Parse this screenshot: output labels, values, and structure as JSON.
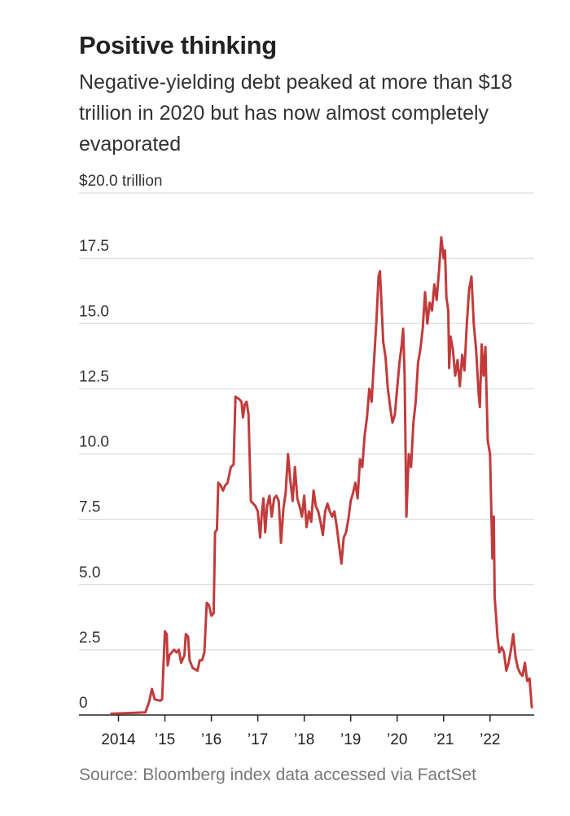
{
  "chart_data": {
    "type": "line",
    "title": "Positive thinking",
    "subtitle": "Negative-yielding debt peaked at more than $18 trillion in 2020 but has now almost completely evaporated",
    "source": "Source: Bloomberg index data accessed via FactSet",
    "ylim": [
      0,
      20
    ],
    "xlim": [
      2013.15,
      2022.95
    ],
    "y_ticks": [
      {
        "value": 20,
        "label": "$20.0 trillion"
      },
      {
        "value": 17.5,
        "label": "17.5"
      },
      {
        "value": 15,
        "label": "15.0"
      },
      {
        "value": 12.5,
        "label": "12.5"
      },
      {
        "value": 10,
        "label": "10.0"
      },
      {
        "value": 7.5,
        "label": "7.5"
      },
      {
        "value": 5,
        "label": "5.0"
      },
      {
        "value": 2.5,
        "label": "2.5"
      },
      {
        "value": 0,
        "label": "0"
      }
    ],
    "x_ticks": [
      {
        "value": 2014,
        "label": "2014"
      },
      {
        "value": 2015,
        "label": "’15"
      },
      {
        "value": 2016,
        "label": "’16"
      },
      {
        "value": 2017,
        "label": "’17"
      },
      {
        "value": 2018,
        "label": "’18"
      },
      {
        "value": 2019,
        "label": "’19"
      },
      {
        "value": 2020,
        "label": "’20"
      },
      {
        "value": 2021,
        "label": "’21"
      },
      {
        "value": 2022,
        "label": "’22"
      }
    ],
    "grid": "horizontal",
    "line_color": "#c23b3b",
    "series": [
      {
        "name": "",
        "points": [
          [
            2013.85,
            0.05
          ],
          [
            2014.3,
            0.08
          ],
          [
            2014.58,
            0.1
          ],
          [
            2014.62,
            0.3
          ],
          [
            2014.66,
            0.5
          ],
          [
            2014.72,
            1.0
          ],
          [
            2014.78,
            0.6
          ],
          [
            2014.9,
            0.55
          ],
          [
            2014.94,
            0.6
          ],
          [
            2015.0,
            3.2
          ],
          [
            2015.04,
            3.1
          ],
          [
            2015.06,
            1.9
          ],
          [
            2015.1,
            2.3
          ],
          [
            2015.2,
            2.5
          ],
          [
            2015.25,
            2.4
          ],
          [
            2015.3,
            2.5
          ],
          [
            2015.35,
            2.0
          ],
          [
            2015.42,
            2.3
          ],
          [
            2015.45,
            3.1
          ],
          [
            2015.5,
            3.0
          ],
          [
            2015.53,
            2.1
          ],
          [
            2015.6,
            1.8
          ],
          [
            2015.7,
            1.7
          ],
          [
            2015.75,
            2.1
          ],
          [
            2015.8,
            2.1
          ],
          [
            2015.85,
            2.4
          ],
          [
            2015.9,
            4.3
          ],
          [
            2015.95,
            4.2
          ],
          [
            2016.0,
            3.8
          ],
          [
            2016.05,
            3.9
          ],
          [
            2016.08,
            7.0
          ],
          [
            2016.12,
            7.1
          ],
          [
            2016.15,
            8.9
          ],
          [
            2016.2,
            8.8
          ],
          [
            2016.25,
            8.6
          ],
          [
            2016.3,
            8.8
          ],
          [
            2016.35,
            8.9
          ],
          [
            2016.42,
            9.5
          ],
          [
            2016.48,
            9.6
          ],
          [
            2016.52,
            12.2
          ],
          [
            2016.6,
            12.1
          ],
          [
            2016.65,
            12.0
          ],
          [
            2016.68,
            11.4
          ],
          [
            2016.72,
            11.9
          ],
          [
            2016.76,
            12.0
          ],
          [
            2016.8,
            11.5
          ],
          [
            2016.85,
            8.2
          ],
          [
            2016.9,
            8.1
          ],
          [
            2016.95,
            8.0
          ],
          [
            2017.0,
            7.8
          ],
          [
            2017.05,
            6.8
          ],
          [
            2017.08,
            7.6
          ],
          [
            2017.12,
            8.3
          ],
          [
            2017.16,
            7.0
          ],
          [
            2017.2,
            8.0
          ],
          [
            2017.25,
            8.4
          ],
          [
            2017.3,
            7.6
          ],
          [
            2017.35,
            8.3
          ],
          [
            2017.4,
            8.4
          ],
          [
            2017.45,
            8.2
          ],
          [
            2017.5,
            6.6
          ],
          [
            2017.55,
            7.9
          ],
          [
            2017.6,
            8.5
          ],
          [
            2017.65,
            10.0
          ],
          [
            2017.7,
            9.0
          ],
          [
            2017.75,
            8.2
          ],
          [
            2017.8,
            9.5
          ],
          [
            2017.85,
            8.3
          ],
          [
            2017.9,
            8.0
          ],
          [
            2017.95,
            7.6
          ],
          [
            2018.0,
            8.4
          ],
          [
            2018.05,
            7.2
          ],
          [
            2018.1,
            7.8
          ],
          [
            2018.15,
            7.4
          ],
          [
            2018.2,
            8.6
          ],
          [
            2018.25,
            8.0
          ],
          [
            2018.3,
            7.8
          ],
          [
            2018.35,
            7.4
          ],
          [
            2018.4,
            6.9
          ],
          [
            2018.45,
            7.8
          ],
          [
            2018.5,
            8.1
          ],
          [
            2018.55,
            7.8
          ],
          [
            2018.6,
            7.6
          ],
          [
            2018.65,
            7.8
          ],
          [
            2018.7,
            7.2
          ],
          [
            2018.75,
            6.5
          ],
          [
            2018.8,
            5.8
          ],
          [
            2018.85,
            6.8
          ],
          [
            2018.9,
            7.0
          ],
          [
            2018.95,
            7.5
          ],
          [
            2019.0,
            8.2
          ],
          [
            2019.05,
            8.5
          ],
          [
            2019.1,
            8.9
          ],
          [
            2019.15,
            8.3
          ],
          [
            2019.2,
            9.8
          ],
          [
            2019.25,
            9.5
          ],
          [
            2019.3,
            10.7
          ],
          [
            2019.35,
            11.4
          ],
          [
            2019.4,
            12.5
          ],
          [
            2019.45,
            12.0
          ],
          [
            2019.5,
            13.5
          ],
          [
            2019.55,
            15.0
          ],
          [
            2019.6,
            16.8
          ],
          [
            2019.63,
            17.0
          ],
          [
            2019.67,
            15.5
          ],
          [
            2019.7,
            14.3
          ],
          [
            2019.75,
            13.7
          ],
          [
            2019.8,
            12.5
          ],
          [
            2019.85,
            11.8
          ],
          [
            2019.9,
            11.2
          ],
          [
            2019.95,
            11.5
          ],
          [
            2020.0,
            12.5
          ],
          [
            2020.05,
            13.5
          ],
          [
            2020.1,
            14.2
          ],
          [
            2020.13,
            14.8
          ],
          [
            2020.16,
            13.0
          ],
          [
            2020.2,
            7.6
          ],
          [
            2020.25,
            10.0
          ],
          [
            2020.3,
            9.5
          ],
          [
            2020.35,
            11.2
          ],
          [
            2020.4,
            12.0
          ],
          [
            2020.45,
            13.5
          ],
          [
            2020.5,
            14.0
          ],
          [
            2020.55,
            14.8
          ],
          [
            2020.6,
            16.2
          ],
          [
            2020.65,
            15.0
          ],
          [
            2020.7,
            15.8
          ],
          [
            2020.75,
            15.5
          ],
          [
            2020.8,
            16.5
          ],
          [
            2020.85,
            15.9
          ],
          [
            2020.9,
            17.0
          ],
          [
            2020.95,
            18.3
          ],
          [
            2021.0,
            17.5
          ],
          [
            2021.03,
            17.8
          ],
          [
            2021.06,
            16.0
          ],
          [
            2021.1,
            15.5
          ],
          [
            2021.12,
            13.3
          ],
          [
            2021.15,
            14.5
          ],
          [
            2021.2,
            14.0
          ],
          [
            2021.25,
            13.0
          ],
          [
            2021.3,
            13.6
          ],
          [
            2021.35,
            12.6
          ],
          [
            2021.4,
            13.8
          ],
          [
            2021.45,
            13.2
          ],
          [
            2021.5,
            15.0
          ],
          [
            2021.55,
            16.3
          ],
          [
            2021.6,
            16.8
          ],
          [
            2021.65,
            15.0
          ],
          [
            2021.7,
            14.0
          ],
          [
            2021.75,
            12.4
          ],
          [
            2021.78,
            11.8
          ],
          [
            2021.82,
            14.2
          ],
          [
            2021.86,
            13.0
          ],
          [
            2021.9,
            14.1
          ],
          [
            2021.95,
            10.5
          ],
          [
            2022.0,
            10.0
          ],
          [
            2022.05,
            6.0
          ],
          [
            2022.08,
            7.6
          ],
          [
            2022.1,
            4.5
          ],
          [
            2022.13,
            3.8
          ],
          [
            2022.16,
            3.0
          ],
          [
            2022.2,
            2.4
          ],
          [
            2022.25,
            2.6
          ],
          [
            2022.3,
            2.4
          ],
          [
            2022.35,
            1.7
          ],
          [
            2022.4,
            2.0
          ],
          [
            2022.45,
            2.5
          ],
          [
            2022.5,
            3.1
          ],
          [
            2022.55,
            2.2
          ],
          [
            2022.6,
            1.8
          ],
          [
            2022.65,
            1.6
          ],
          [
            2022.7,
            1.5
          ],
          [
            2022.75,
            2.0
          ],
          [
            2022.8,
            1.3
          ],
          [
            2022.85,
            1.4
          ],
          [
            2022.9,
            0.3
          ]
        ]
      }
    ]
  }
}
